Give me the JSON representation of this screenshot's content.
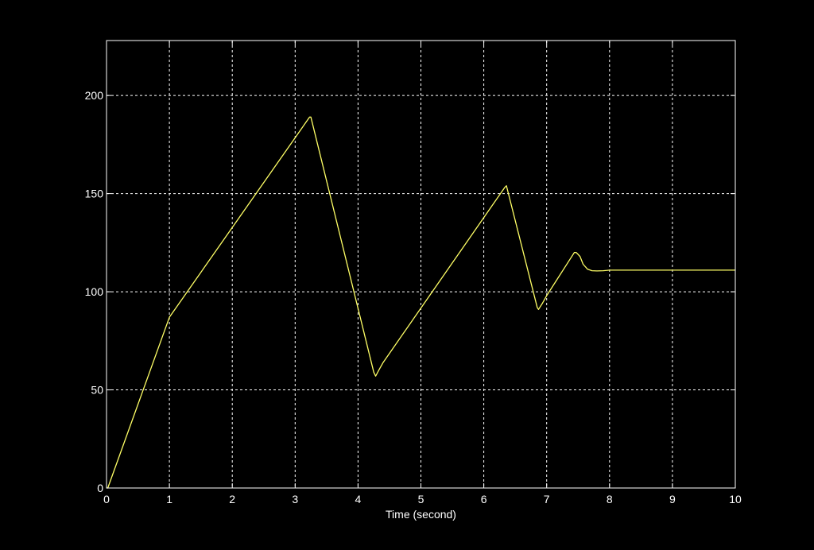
{
  "chart_data": {
    "type": "line",
    "title": "",
    "xlabel": "Time (second)",
    "ylabel": "",
    "xlim": [
      0,
      10
    ],
    "ylim": [
      0,
      228
    ],
    "xticks": [
      0,
      1,
      2,
      3,
      4,
      5,
      6,
      7,
      8,
      9,
      10
    ],
    "yticks": [
      0,
      50,
      100,
      150,
      200
    ],
    "grid": true,
    "colors": {
      "background": "#000000",
      "axes": "#ffffff",
      "grid": "#ffffff",
      "line": "#ffff66"
    },
    "series": [
      {
        "x": [
          0,
          0.02,
          1.0,
          3.23,
          3.25,
          4.25,
          4.28,
          4.33,
          4.4,
          6.33,
          6.36,
          6.85,
          6.87,
          6.93,
          7.0,
          7.44,
          7.47,
          7.53,
          7.58,
          7.65,
          7.72,
          7.8,
          7.9,
          8.0,
          10.0
        ],
        "y": [
          0,
          0,
          87,
          189,
          189,
          59,
          57,
          60,
          64,
          153,
          154,
          92,
          91,
          94,
          98,
          120,
          120,
          118,
          114,
          111.5,
          110.7,
          110.6,
          110.7,
          111,
          111
        ]
      }
    ]
  }
}
